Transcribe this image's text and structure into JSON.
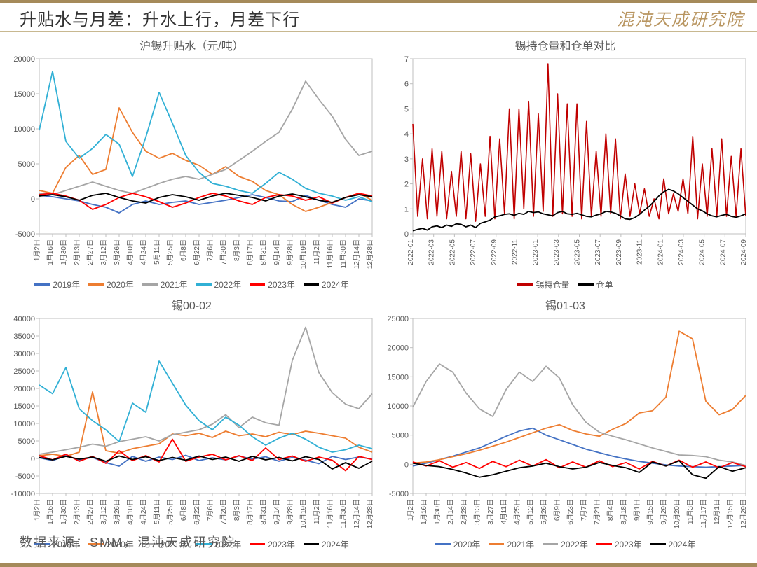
{
  "header": {
    "title": "升贴水与月差：升水上行，月差下行",
    "brand": "混沌天成研究院"
  },
  "footer": {
    "source": "数据来源：SMM，混沌天成研究院"
  },
  "palette": {
    "y2019": "#4472c4",
    "y2020": "#ed7d31",
    "y2021": "#a5a5a5",
    "y2022": "#31b0d5",
    "y2023": "#ff0000",
    "y2024": "#000000",
    "pos_red": "#c00000",
    "black": "#000000",
    "axis": "#bfbfbf",
    "text": "#595959",
    "bg": "#ffffff"
  },
  "chart_tl": {
    "title": "沪锡升贴水（元/吨）",
    "type": "line",
    "ylim": [
      -5000,
      20000
    ],
    "ytick_step": 5000,
    "x_categories": [
      "1月2日",
      "1月16日",
      "1月30日",
      "2月13日",
      "2月27日",
      "3月12日",
      "3月26日",
      "4月10日",
      "4月24日",
      "5月11日",
      "5月25日",
      "6月8日",
      "6月22日",
      "7月6日",
      "7月20日",
      "8月3日",
      "8月17日",
      "8月31日",
      "9月14日",
      "9月28日",
      "10月19日",
      "11月2日",
      "11月16日",
      "11月30日",
      "12月14日",
      "12月28日"
    ],
    "legend_labels": [
      "2019年",
      "2020年",
      "2021年",
      "2022年",
      "2023年",
      "2024年"
    ],
    "series": {
      "2019年": {
        "color_key": "y2019",
        "width": 1.8,
        "data": [
          500,
          300,
          0,
          -300,
          -800,
          -1200,
          -2000,
          -800,
          -300,
          -800,
          -500,
          -300,
          -800,
          -500,
          -200,
          200,
          600,
          200,
          -300,
          -400,
          500,
          -200,
          -800,
          -1200,
          0,
          -300
        ]
      },
      "2020年": {
        "color_key": "y2020",
        "width": 1.8,
        "data": [
          1200,
          800,
          4500,
          6200,
          3500,
          4200,
          13000,
          9500,
          6800,
          5800,
          6500,
          5500,
          4800,
          3500,
          4600,
          3200,
          2500,
          1200,
          600,
          -800,
          -1800,
          -1200,
          -500,
          200,
          800,
          -200
        ]
      },
      "2021年": {
        "color_key": "y2021",
        "width": 1.8,
        "data": [
          800,
          600,
          1200,
          1800,
          2400,
          1800,
          1200,
          800,
          1500,
          2200,
          2800,
          3200,
          2800,
          3500,
          4200,
          5500,
          6800,
          8200,
          9500,
          12800,
          16800,
          14200,
          11800,
          8500,
          6200,
          6800
        ]
      },
      "2022年": {
        "color_key": "y2022",
        "width": 1.8,
        "data": [
          9800,
          18200,
          8200,
          5800,
          7200,
          9200,
          7800,
          3200,
          8800,
          15200,
          10800,
          6200,
          3800,
          2200,
          1800,
          1200,
          800,
          2200,
          3800,
          2800,
          1500,
          800,
          400,
          -200,
          300,
          -400
        ]
      },
      "2023年": {
        "color_key": "y2023",
        "width": 1.8,
        "data": [
          600,
          800,
          400,
          -200,
          -1500,
          -800,
          200,
          800,
          300,
          -400,
          -1200,
          -600,
          200,
          800,
          400,
          -300,
          -800,
          200,
          600,
          400,
          -200,
          300,
          -600,
          200,
          800,
          400
        ]
      },
      "2024年": {
        "color_key": "y2024",
        "width": 1.8,
        "data": [
          400,
          600,
          300,
          -200,
          500,
          800,
          200,
          -300,
          -600,
          200,
          600,
          300,
          -200,
          400,
          800,
          500,
          200,
          -300,
          400,
          700,
          300,
          -200,
          -500,
          200,
          600,
          300
        ]
      }
    }
  },
  "chart_tr": {
    "title": "锡持仓量和仓单对比",
    "type": "line",
    "ylim": [
      0,
      7
    ],
    "ytick_step": 1,
    "x_categories": [
      "2022-01",
      "2022-03",
      "2022-05",
      "2022-07",
      "2022-09",
      "2022-11",
      "2023-01",
      "2023-03",
      "2023-05",
      "2023-07",
      "2023-09",
      "2023-11",
      "2024-01",
      "2024-03",
      "2024-05",
      "2024-07",
      "2024-09"
    ],
    "legend_labels": [
      "锡持仓量",
      "仓单"
    ],
    "series": {
      "锡持仓量": {
        "color_key": "pos_red",
        "width": 1.6,
        "data": [
          4.4,
          0.7,
          3.0,
          0.6,
          3.4,
          0.7,
          3.3,
          0.6,
          2.5,
          0.7,
          3.3,
          0.6,
          3.2,
          0.5,
          2.8,
          0.7,
          3.9,
          0.6,
          3.8,
          0.8,
          5.0,
          0.6,
          5.0,
          1.0,
          5.3,
          0.7,
          4.8,
          0.9,
          6.8,
          0.7,
          5.6,
          0.8,
          5.2,
          0.7,
          5.2,
          0.6,
          4.5,
          0.7,
          3.3,
          0.7,
          4.0,
          0.8,
          3.8,
          0.6,
          2.4,
          0.7,
          2.0,
          0.8,
          1.8,
          0.7,
          1.4,
          0.6,
          2.2,
          0.8,
          1.6,
          0.9,
          2.2,
          0.8,
          3.9,
          0.6,
          2.8,
          0.7,
          3.4,
          0.7,
          3.8,
          0.7,
          3.1,
          0.7,
          3.4,
          0.7
        ]
      },
      "仓单": {
        "color_key": "black",
        "width": 1.8,
        "data": [
          0.12,
          0.18,
          0.22,
          0.15,
          0.28,
          0.32,
          0.25,
          0.35,
          0.3,
          0.4,
          0.38,
          0.28,
          0.35,
          0.25,
          0.42,
          0.48,
          0.55,
          0.68,
          0.72,
          0.78,
          0.8,
          0.74,
          0.82,
          0.78,
          0.9,
          0.85,
          0.88,
          0.8,
          0.76,
          0.72,
          0.85,
          0.9,
          0.8,
          0.78,
          0.82,
          0.76,
          0.7,
          0.68,
          0.75,
          0.8,
          0.9,
          0.88,
          0.82,
          0.72,
          0.6,
          0.58,
          0.65,
          0.78,
          0.95,
          1.1,
          1.3,
          1.52,
          1.68,
          1.78,
          1.72,
          1.6,
          1.45,
          1.3,
          1.15,
          1.0,
          0.92,
          0.8,
          0.72,
          0.68,
          0.74,
          0.78,
          0.7,
          0.66,
          0.72,
          0.8
        ]
      }
    }
  },
  "chart_bl": {
    "title": "锡00-02",
    "type": "line",
    "ylim": [
      -10000,
      40000
    ],
    "ytick_step": 5000,
    "x_categories": [
      "1月2日",
      "1月16日",
      "1月30日",
      "2月13日",
      "2月27日",
      "3月12日",
      "3月26日",
      "4月10日",
      "4月24日",
      "5月11日",
      "5月25日",
      "6月8日",
      "6月22日",
      "7月6日",
      "7月20日",
      "8月3日",
      "8月17日",
      "8月31日",
      "9月14日",
      "9月28日",
      "10月19日",
      "11月2日",
      "11月16日",
      "11月30日",
      "12月14日",
      "12月28日"
    ],
    "legend_labels": [
      "2019年",
      "2020年",
      "2021年",
      "2022年",
      "2023年",
      "2024年"
    ],
    "series": {
      "2019年": {
        "color_key": "y2019",
        "width": 1.8,
        "data": [
          200,
          -600,
          800,
          -400,
          300,
          -1200,
          -2200,
          600,
          -800,
          400,
          -300,
          900,
          -600,
          200,
          -400,
          700,
          -200,
          500,
          -800,
          300,
          -500,
          -1500,
          600,
          -300,
          400,
          -200
        ]
      },
      "2020年": {
        "color_key": "y2020",
        "width": 1.8,
        "data": [
          800,
          1200,
          600,
          1800,
          19000,
          2200,
          1500,
          2800,
          3500,
          4200,
          7000,
          6500,
          7200,
          6000,
          7800,
          6500,
          7000,
          6200,
          7500,
          6800,
          7800,
          7200,
          6500,
          5800,
          3200,
          1800
        ]
      },
      "2021年": {
        "color_key": "y2021",
        "width": 1.8,
        "data": [
          1200,
          1800,
          2500,
          3200,
          4100,
          3500,
          4800,
          5500,
          6200,
          5000,
          6800,
          7500,
          8200,
          9800,
          12500,
          8800,
          11800,
          10200,
          9500,
          28000,
          37500,
          24500,
          18800,
          15500,
          14200,
          18500
        ]
      },
      "2022年": {
        "color_key": "y2022",
        "width": 1.8,
        "data": [
          21000,
          18500,
          26000,
          14200,
          10800,
          8200,
          4800,
          15800,
          13200,
          27800,
          21500,
          15200,
          10800,
          8200,
          11800,
          9500,
          6200,
          3800,
          5800,
          7200,
          5500,
          3200,
          1800,
          2500,
          3800,
          2800
        ]
      },
      "2023年": {
        "color_key": "y2023",
        "width": 1.8,
        "data": [
          800,
          -400,
          1200,
          -800,
          600,
          -1400,
          2200,
          -600,
          800,
          -1000,
          5500,
          -800,
          400,
          1200,
          -400,
          800,
          -600,
          3000,
          -300,
          700,
          -800,
          400,
          -500,
          -3500,
          600,
          -300
        ]
      },
      "2024年": {
        "color_key": "y2024",
        "width": 1.8,
        "data": [
          300,
          -400,
          600,
          -200,
          400,
          -800,
          700,
          -300,
          500,
          -600,
          300,
          -500,
          700,
          -300,
          400,
          -800,
          600,
          -400,
          300,
          -700,
          500,
          -300,
          -3000,
          -1200,
          -2800,
          -800
        ]
      }
    }
  },
  "chart_br": {
    "title": "锡01-03",
    "type": "line",
    "ylim": [
      -5000,
      25000
    ],
    "ytick_step": 5000,
    "x_categories": [
      "1月2日",
      "1月16日",
      "1月30日",
      "2月14日",
      "2月28日",
      "3月13日",
      "3月27日",
      "4月11日",
      "4月25日",
      "5月12日",
      "5月26日",
      "6月9日",
      "6月23日",
      "7月7日",
      "7月21日",
      "8月4日",
      "8月18日",
      "9月1日",
      "9月15日",
      "9月29日",
      "10月20日",
      "11月3日",
      "11月17日",
      "12月1日",
      "12月15日",
      "12月29日"
    ],
    "legend_labels": [
      "2020年",
      "2021年",
      "2022年",
      "2023年",
      "2024年"
    ],
    "series": {
      "2020年": {
        "color_key": "y2019",
        "width": 1.8,
        "data": [
          -300,
          200,
          800,
          1400,
          2100,
          2800,
          3800,
          4800,
          5700,
          6200,
          5000,
          4200,
          3400,
          2600,
          2000,
          1400,
          900,
          500,
          200,
          -100,
          -300,
          -400,
          -500,
          -400,
          -300,
          -200
        ]
      },
      "2021年": {
        "color_key": "y2020",
        "width": 1.8,
        "data": [
          200,
          400,
          800,
          1300,
          1800,
          2400,
          3100,
          3800,
          4600,
          5400,
          6200,
          6800,
          5800,
          5200,
          4800,
          6000,
          7000,
          8800,
          9200,
          11500,
          22800,
          21500,
          10800,
          8500,
          9400,
          11800
        ]
      },
      "2022年": {
        "color_key": "y2021",
        "width": 1.8,
        "data": [
          9800,
          14200,
          17200,
          15800,
          12200,
          9500,
          8200,
          12800,
          15800,
          14200,
          16800,
          14800,
          10200,
          7200,
          5500,
          4800,
          4200,
          3500,
          2800,
          2200,
          1600,
          1500,
          1300,
          700,
          400,
          -200
        ]
      },
      "2023年": {
        "color_key": "y2023",
        "width": 1.8,
        "data": [
          400,
          -300,
          600,
          -500,
          300,
          -700,
          500,
          -400,
          700,
          -300,
          800,
          -600,
          400,
          -500,
          600,
          -400,
          300,
          -800,
          500,
          -300,
          700,
          -500,
          400,
          -600,
          300,
          -400
        ]
      },
      "2024年": {
        "color_key": "y2024",
        "width": 1.8,
        "data": [
          200,
          -200,
          -400,
          -900,
          -1500,
          -2200,
          -1800,
          -1200,
          -600,
          -300,
          200,
          -400,
          -800,
          -500,
          300,
          -200,
          -600,
          -1400,
          400,
          -300,
          600,
          -1800,
          -2400,
          -400,
          -1200,
          -600
        ]
      }
    }
  }
}
